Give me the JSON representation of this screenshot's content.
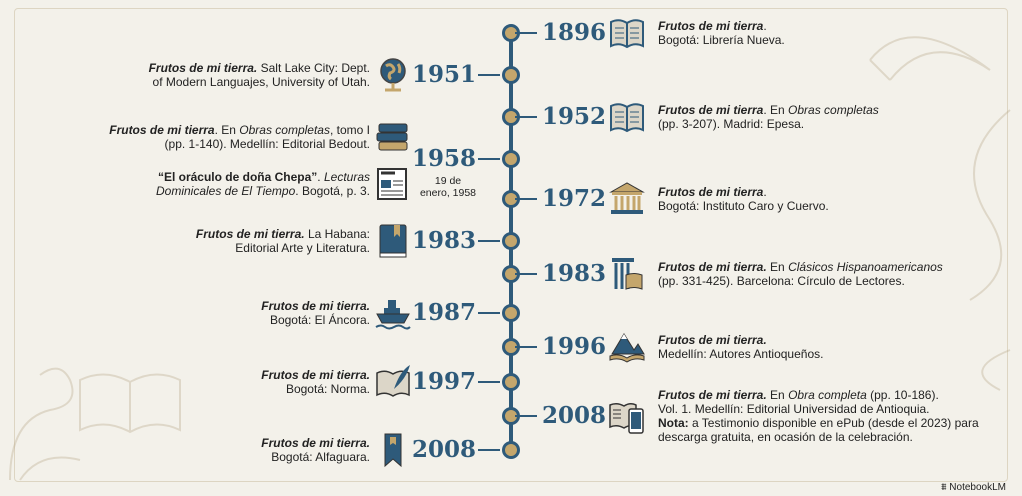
{
  "colors": {
    "spine": "#2e5a7a",
    "node": "#c4a66c",
    "background": "#f3f1ea"
  },
  "entries": [
    {
      "side": "right",
      "year": "1896",
      "icon": "open-book-icon",
      "lines": [
        [
          [
            "bi",
            "Frutos de mi tierra"
          ],
          [
            "n",
            "."
          ]
        ],
        [
          [
            "n",
            "Bogotá: Librería Nueva."
          ]
        ]
      ]
    },
    {
      "side": "left",
      "year": "1951",
      "icon": "globe-icon",
      "lines": [
        [
          [
            "bi",
            "Frutos de mi tierra."
          ],
          [
            "n",
            " Salt Lake City: Dept."
          ]
        ],
        [
          [
            "n",
            "of Modern Languajes, University of Utah."
          ]
        ]
      ]
    },
    {
      "side": "right",
      "year": "1952",
      "icon": "open-book-icon",
      "lines": [
        [
          [
            "bi",
            "Frutos de mi tierra"
          ],
          [
            "n",
            ". En "
          ],
          [
            "i",
            "Obras completas"
          ]
        ],
        [
          [
            "n",
            "(pp. 3-207). Madrid: Epesa."
          ]
        ]
      ]
    },
    {
      "side": "left",
      "year": "1958",
      "icon": "book-stack-icon",
      "lines": [
        [
          [
            "bi",
            "Frutos de mi tierra"
          ],
          [
            "n",
            ". En "
          ],
          [
            "i",
            "Obras completas"
          ],
          [
            "n",
            ", tomo I"
          ]
        ],
        [
          [
            "n",
            "(pp. 1-140). Medellín: Editorial Bedout."
          ]
        ]
      ]
    },
    {
      "side": "left",
      "year": "",
      "icon": "newspaper-icon",
      "subdate": [
        "19 de",
        "enero, 1958"
      ],
      "lines": [
        [
          [
            "b",
            "“El oráculo de doña Chepa”"
          ],
          [
            "n",
            ". "
          ],
          [
            "i",
            "Lecturas"
          ]
        ],
        [
          [
            "i",
            "Dominicales de El Tiempo"
          ],
          [
            "n",
            ". Bogotá, p. 3."
          ]
        ]
      ]
    },
    {
      "side": "right",
      "year": "1972",
      "icon": "institution-building-icon",
      "lines": [
        [
          [
            "bi",
            "Frutos de mi tierra"
          ],
          [
            "n",
            "."
          ]
        ],
        [
          [
            "n",
            "Bogotá: Instituto Caro y Cuervo."
          ]
        ]
      ]
    },
    {
      "side": "left",
      "year": "1983",
      "icon": "bookmarked-book-icon",
      "lines": [
        [
          [
            "bi",
            "Frutos de mi tierra."
          ],
          [
            "n",
            " La Habana:"
          ]
        ],
        [
          [
            "n",
            "Editorial Arte y Literatura."
          ]
        ]
      ]
    },
    {
      "side": "right",
      "year": "1983",
      "icon": "column-book-icon",
      "lines": [
        [
          [
            "bi",
            "Frutos de mi tierra."
          ],
          [
            "n",
            " En "
          ],
          [
            "i",
            "Clásicos Hispanoamericanos"
          ]
        ],
        [
          [
            "n",
            "(pp. 331-425). Barcelona: Círculo de Lectores."
          ]
        ]
      ]
    },
    {
      "side": "left",
      "year": "1987",
      "icon": "ship-icon",
      "lines": [
        [
          [
            "bi",
            "Frutos de mi tierra."
          ]
        ],
        [
          [
            "n",
            "Bogotá: El Áncora."
          ]
        ]
      ]
    },
    {
      "side": "right",
      "year": "1996",
      "icon": "mountain-book-icon",
      "lines": [
        [
          [
            "bi",
            "Frutos de mi tierra."
          ]
        ],
        [
          [
            "n",
            "Medellín: Autores Antioqueños."
          ]
        ]
      ]
    },
    {
      "side": "left",
      "year": "1997",
      "icon": "quill-book-icon",
      "lines": [
        [
          [
            "bi",
            "Frutos de mi tierra."
          ]
        ],
        [
          [
            "n",
            "Bogotá: Norma."
          ]
        ]
      ]
    },
    {
      "side": "right",
      "year": "2008",
      "icon": "book-tablet-icon",
      "lines": [
        [
          [
            "bi",
            "Frutos de mi tierra."
          ],
          [
            "n",
            " En "
          ],
          [
            "i",
            "Obra completa"
          ],
          [
            "n",
            " (pp. 10-186)."
          ]
        ],
        [
          [
            "n",
            "Vol. 1. Medellín: Editorial Universidad de Antioquia."
          ]
        ],
        [
          [
            "b",
            "Nota:"
          ],
          [
            "n",
            " a Testimonio disponible en ePub (desde el 2023) para"
          ]
        ],
        [
          [
            "n",
            "descarga gratuita, en ocasión de la celebración."
          ]
        ]
      ]
    },
    {
      "side": "left",
      "year": "2008",
      "icon": "bookmark-icon",
      "lines": [
        [
          [
            "bi",
            "Frutos de mi tierra."
          ]
        ],
        [
          [
            "n",
            "Bogotá: Alfaguara."
          ]
        ]
      ]
    }
  ],
  "branding": "NotebookLM"
}
